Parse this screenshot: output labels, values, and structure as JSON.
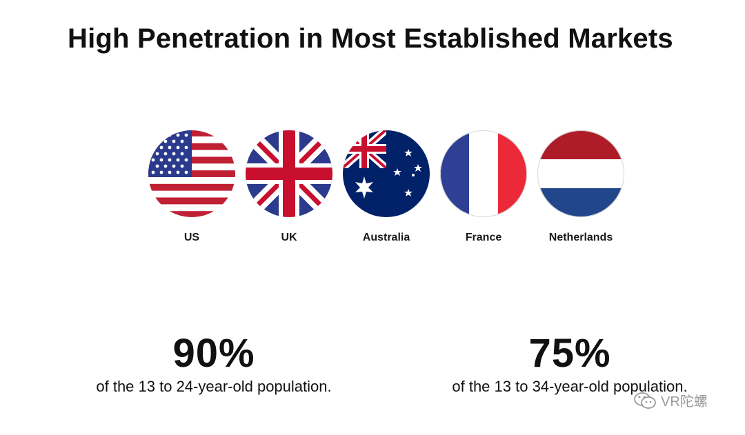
{
  "title": "High Penetration in Most Established Markets",
  "flags": [
    {
      "label": "US",
      "icon": "us-flag-icon"
    },
    {
      "label": "UK",
      "icon": "uk-flag-icon"
    },
    {
      "label": "Australia",
      "icon": "australia-flag-icon"
    },
    {
      "label": "France",
      "icon": "france-flag-icon"
    },
    {
      "label": "Netherlands",
      "icon": "netherlands-flag-icon"
    }
  ],
  "stats": [
    {
      "value": "90%",
      "caption": "of the 13 to 24-year-old population."
    },
    {
      "value": "75%",
      "caption": "of the 13 to 34-year-old population."
    }
  ],
  "watermark": {
    "text": "VR陀螺",
    "icon": "wechat-icon"
  },
  "colors": {
    "red": "#BF2034",
    "blue": "#2B3A8C",
    "navy": "#012169",
    "france_blue": "#2E3F94",
    "france_red": "#EC2939",
    "nl_red": "#AE1C28",
    "nl_blue": "#21468B"
  }
}
